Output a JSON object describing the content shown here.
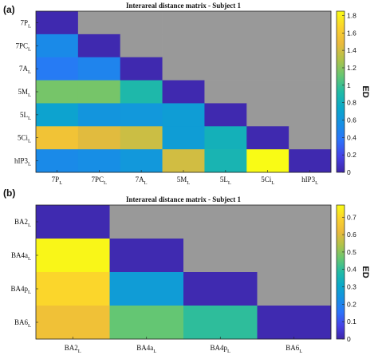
{
  "chart_data": [
    {
      "type": "heatmap",
      "panel": "(a)",
      "title": "Interareal distance matrix - Subject 1",
      "colorbar_label": "ED",
      "clim": [
        0,
        1.85
      ],
      "colorbar_ticks": [
        "0",
        "0.2",
        "0.4",
        "0.6",
        "0.8",
        "1",
        "1.2",
        "1.4",
        "1.6",
        "1.8"
      ],
      "masked_color": "#999999",
      "labels": [
        {
          "base": "7P",
          "sub": "L"
        },
        {
          "base": "7PC",
          "sub": "L"
        },
        {
          "base": "7A",
          "sub": "L"
        },
        {
          "base": "5M",
          "sub": "L"
        },
        {
          "base": "5L",
          "sub": "L"
        },
        {
          "base": "5Ci",
          "sub": "L"
        },
        {
          "base": "hIP3",
          "sub": "L"
        }
      ],
      "matrix": [
        [
          0.02,
          null,
          null,
          null,
          null,
          null,
          null
        ],
        [
          0.52,
          0.02,
          null,
          null,
          null,
          null,
          null
        ],
        [
          0.42,
          0.48,
          0.02,
          null,
          null,
          null,
          null
        ],
        [
          1.15,
          1.15,
          0.9,
          0.02,
          null,
          null,
          null
        ],
        [
          0.7,
          0.6,
          0.62,
          0.66,
          0.02,
          null,
          null
        ],
        [
          1.55,
          1.45,
          1.38,
          0.66,
          0.82,
          0.02,
          null
        ],
        [
          0.52,
          0.55,
          0.62,
          1.4,
          0.86,
          1.85,
          0.02
        ]
      ]
    },
    {
      "type": "heatmap",
      "panel": "(b)",
      "title": "Interareal distance matrix - Subject 1",
      "colorbar_label": "ED",
      "clim": [
        0,
        0.77
      ],
      "colorbar_ticks": [
        "0",
        "0.1",
        "0.2",
        "0.3",
        "0.4",
        "0.5",
        "0.6",
        "0.7"
      ],
      "masked_color": "#999999",
      "labels": [
        {
          "base": "BA2",
          "sub": "L"
        },
        {
          "base": "BA4a",
          "sub": "L"
        },
        {
          "base": "BA4p",
          "sub": "L"
        },
        {
          "base": "BA6",
          "sub": "L"
        }
      ],
      "matrix": [
        [
          0.01,
          null,
          null,
          null
        ],
        [
          0.76,
          0.01,
          null,
          null
        ],
        [
          0.7,
          0.27,
          0.01,
          null
        ],
        [
          0.64,
          0.46,
          0.4,
          0.01
        ]
      ]
    }
  ]
}
